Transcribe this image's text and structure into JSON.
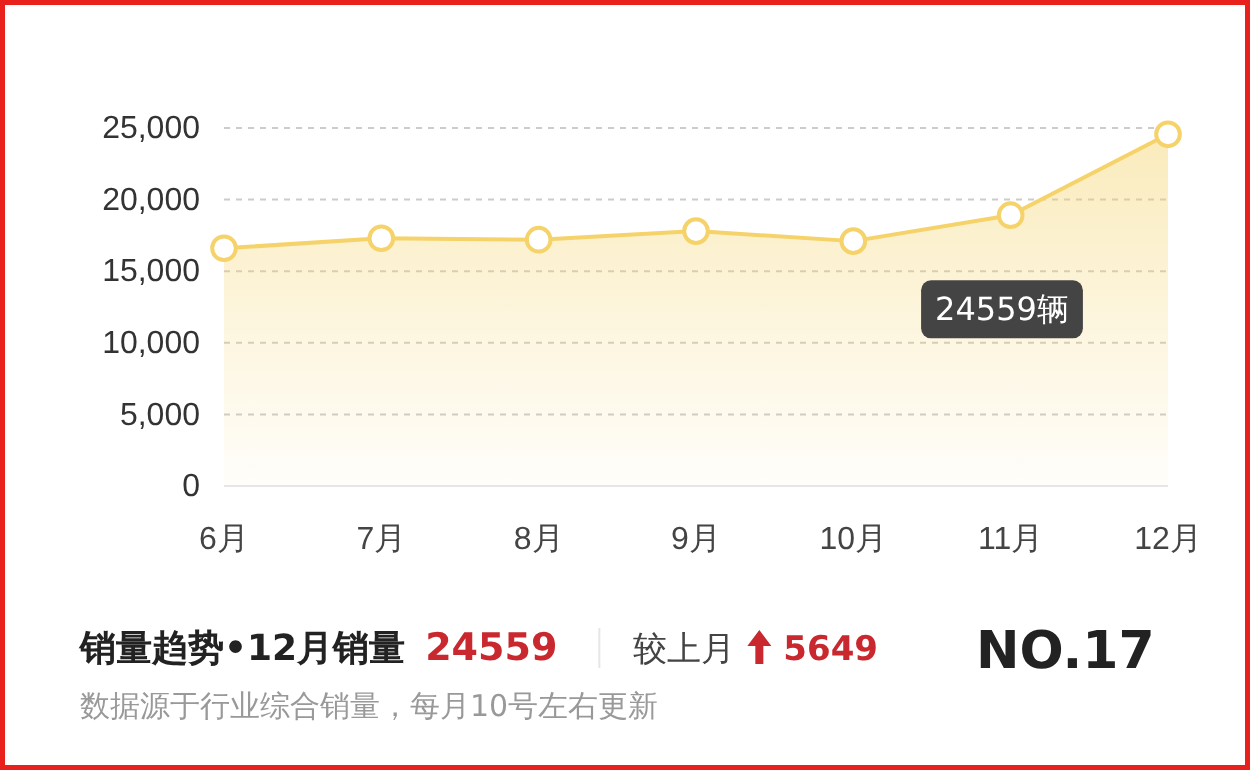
{
  "chart_data": {
    "type": "area",
    "title": "销量趋势•12月销量",
    "subtitle": "数据源于行业综合销量，每月10号左右更新",
    "categories": [
      "6月",
      "7月",
      "8月",
      "9月",
      "10月",
      "11月",
      "12月"
    ],
    "series": [
      {
        "color": "#f5d36a",
        "values": [
          16600,
          17300,
          17200,
          17800,
          17100,
          18910,
          24559
        ]
      }
    ],
    "ylim": [
      0,
      25000
    ],
    "yticks": [
      {
        "value": 0,
        "label": "0"
      },
      {
        "value": 5000,
        "label": "5,000"
      },
      {
        "value": 10000,
        "label": "10,000"
      },
      {
        "value": 15000,
        "label": "15,000"
      },
      {
        "value": 20000,
        "label": "20,000"
      },
      {
        "value": 25000,
        "label": "25,000"
      }
    ],
    "grid": "y",
    "marker": "circle",
    "annotations": [
      "24559辆",
      "24559",
      "较上月",
      "5649",
      "NO.17"
    ]
  }
}
